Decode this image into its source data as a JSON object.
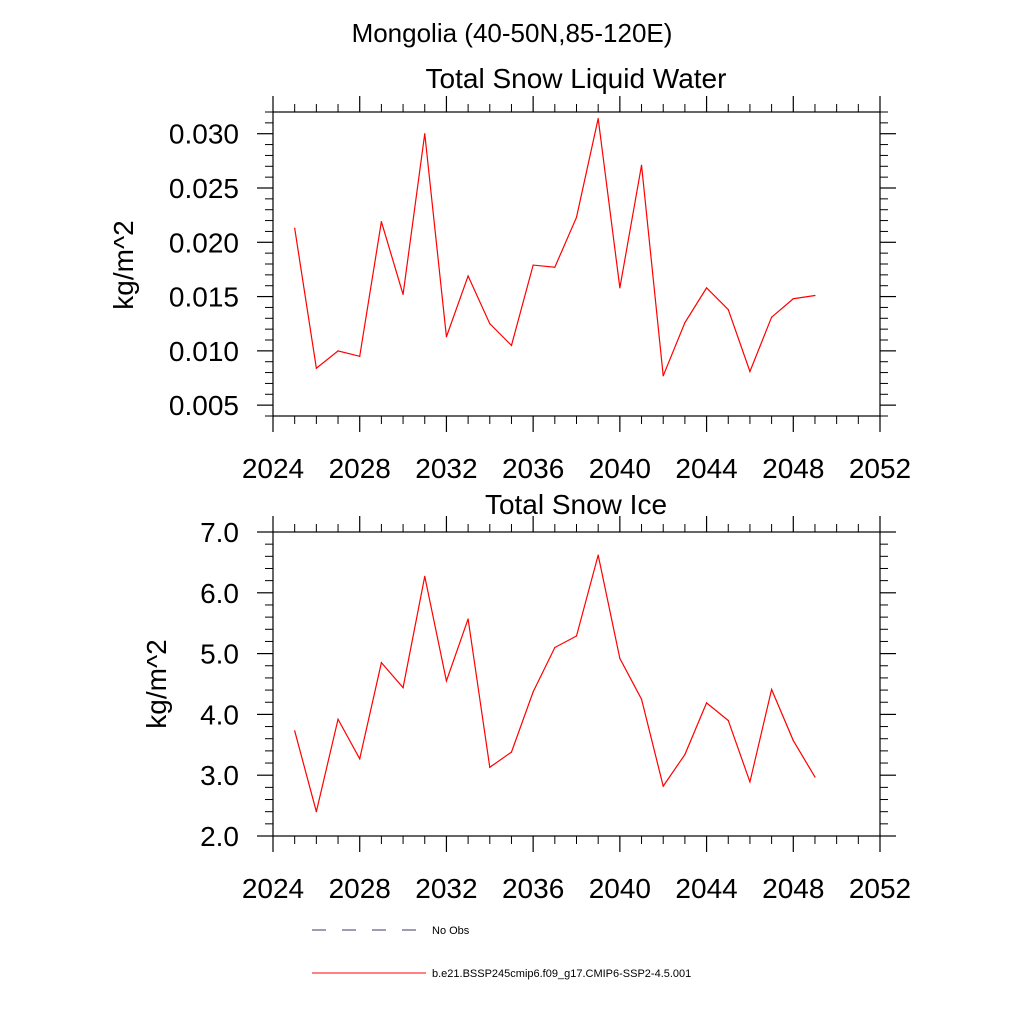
{
  "page_title": "Mongolia (40-50N,85-120E)",
  "chart_data": [
    {
      "type": "line",
      "title": "Total Snow Liquid Water",
      "xlabel": "",
      "ylabel": "kg/m^2",
      "xlim": [
        2024,
        2052
      ],
      "ylim": [
        0.004,
        0.032
      ],
      "xticks": [
        2024,
        2028,
        2032,
        2036,
        2040,
        2044,
        2048,
        2052
      ],
      "xtick_labels": [
        "2024",
        "2028",
        "2032",
        "2036",
        "2040",
        "2044",
        "2048",
        "2052"
      ],
      "yticks": [
        0.005,
        0.01,
        0.015,
        0.02,
        0.025,
        0.03
      ],
      "ytick_labels": [
        "0.005",
        "0.010",
        "0.015",
        "0.020",
        "0.025",
        "0.030"
      ],
      "grid": false,
      "x": [
        2025,
        2026,
        2027,
        2028,
        2029,
        2030,
        2031,
        2032,
        2033,
        2034,
        2035,
        2036,
        2037,
        2038,
        2039,
        2040,
        2041,
        2042,
        2043,
        2044,
        2045,
        2046,
        2047,
        2048,
        2049
      ],
      "series": [
        {
          "color": "#ff0000",
          "values": [
            0.0213,
            0.0084,
            0.01,
            0.0095,
            0.0219,
            0.0152,
            0.03,
            0.0113,
            0.0169,
            0.0125,
            0.0105,
            0.0179,
            0.0177,
            0.0223,
            0.0314,
            0.0158,
            0.0271,
            0.0077,
            0.0126,
            0.0158,
            0.0138,
            0.0081,
            0.0131,
            0.0148,
            0.0151
          ]
        }
      ]
    },
    {
      "type": "line",
      "title": "Total Snow Ice",
      "xlabel": "",
      "ylabel": "kg/m^2",
      "xlim": [
        2024,
        2052
      ],
      "ylim": [
        2.0,
        7.0
      ],
      "xticks": [
        2024,
        2028,
        2032,
        2036,
        2040,
        2044,
        2048,
        2052
      ],
      "xtick_labels": [
        "2024",
        "2028",
        "2032",
        "2036",
        "2040",
        "2044",
        "2048",
        "2052"
      ],
      "yticks": [
        2.0,
        3.0,
        4.0,
        5.0,
        6.0,
        7.0
      ],
      "ytick_labels": [
        "2.0",
        "3.0",
        "4.0",
        "5.0",
        "6.0",
        "7.0"
      ],
      "grid": false,
      "x": [
        2025,
        2026,
        2027,
        2028,
        2029,
        2030,
        2031,
        2032,
        2033,
        2034,
        2035,
        2036,
        2037,
        2038,
        2039,
        2040,
        2041,
        2042,
        2043,
        2044,
        2045,
        2046,
        2047,
        2048,
        2049
      ],
      "series": [
        {
          "color": "#ff0000",
          "values": [
            3.73,
            2.4,
            3.92,
            3.27,
            4.85,
            4.44,
            6.27,
            4.55,
            5.57,
            3.13,
            3.38,
            4.37,
            5.1,
            5.29,
            6.62,
            4.92,
            4.25,
            2.82,
            3.34,
            4.19,
            3.9,
            2.89,
            4.41,
            3.57,
            2.97
          ]
        }
      ]
    }
  ],
  "legend": {
    "placement": "bottom",
    "items": [
      {
        "label": "No Obs",
        "color": "#3a3a6e",
        "style": "dashed"
      },
      {
        "label": "b.e21.BSSP245cmip6.f09_g17.CMIP6-SSP2-4.5.001",
        "color": "#ff0000",
        "style": "solid"
      }
    ]
  }
}
